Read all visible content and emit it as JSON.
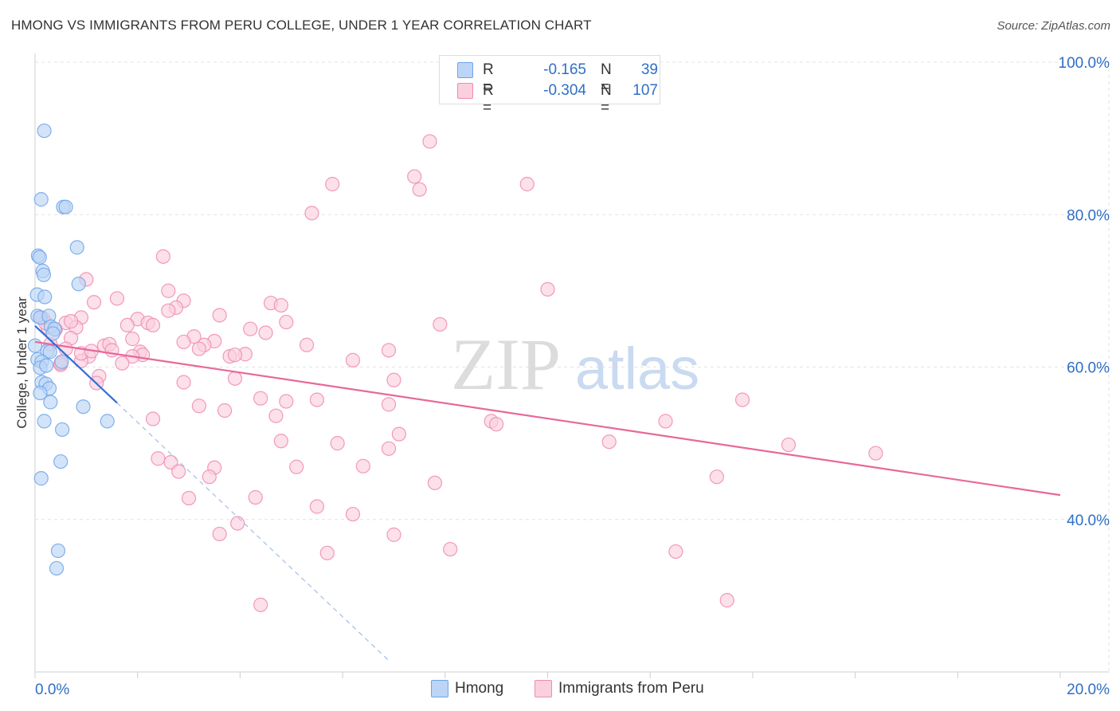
{
  "header": {
    "title": "HMONG VS IMMIGRANTS FROM PERU COLLEGE, UNDER 1 YEAR CORRELATION CHART",
    "source": "Source: ZipAtlas.com"
  },
  "watermark": {
    "zip": "ZIP",
    "atlas": "atlas"
  },
  "legend": {
    "rows": [
      {
        "label": "R =",
        "r_value": "-0.165",
        "n_label": "N =",
        "n_value": "39",
        "color": "#6fa3ea",
        "fill": "#bcd5f6"
      },
      {
        "label": "R =",
        "r_value": "-0.304",
        "n_label": "N =",
        "n_value": "107",
        "color": "#f08aae",
        "fill": "#fad0de"
      }
    ]
  },
  "bottom_legend": {
    "items": [
      {
        "label": "Hmong",
        "color": "#6fa3ea",
        "fill": "#bcd5f6"
      },
      {
        "label": "Immigrants from Peru",
        "color": "#f08aae",
        "fill": "#fad0de"
      }
    ]
  },
  "chart_data": {
    "type": "scatter",
    "title": "HMONG VS IMMIGRANTS FROM PERU COLLEGE, UNDER 1 YEAR CORRELATION CHART",
    "xlabel": "",
    "ylabel": "College, Under 1 year",
    "xlim": [
      0,
      20
    ],
    "ylim": [
      20,
      100
    ],
    "x_ticks": [
      "0.0%",
      "20.0%"
    ],
    "y_ticks": [
      {
        "value": 100,
        "label": "100.0%"
      },
      {
        "value": 80,
        "label": "80.0%"
      },
      {
        "value": 60,
        "label": "60.0%"
      },
      {
        "value": 40,
        "label": "40.0%"
      }
    ],
    "grid": true,
    "series": [
      {
        "name": "Hmong",
        "color": "#6fa3ea",
        "fill": "#bcd5f6",
        "trend_solid": {
          "x": [
            0.0,
            1.6
          ],
          "y": [
            65.4,
            55.3
          ]
        },
        "trend_dashed": {
          "x": [
            1.6,
            6.9
          ],
          "y": [
            55.3,
            21.5
          ]
        },
        "points": [
          [
            0.18,
            91.0
          ],
          [
            0.12,
            82.0
          ],
          [
            0.55,
            81.0
          ],
          [
            0.6,
            81.0
          ],
          [
            0.82,
            75.7
          ],
          [
            0.06,
            74.6
          ],
          [
            0.09,
            74.4
          ],
          [
            0.15,
            72.6
          ],
          [
            0.17,
            72.1
          ],
          [
            0.85,
            70.9
          ],
          [
            0.04,
            69.5
          ],
          [
            0.19,
            69.2
          ],
          [
            0.05,
            66.7
          ],
          [
            0.1,
            66.5
          ],
          [
            0.27,
            66.7
          ],
          [
            0.31,
            65.3
          ],
          [
            0.38,
            65.0
          ],
          [
            0.24,
            62.1
          ],
          [
            0.29,
            62.0
          ],
          [
            0.05,
            61.0
          ],
          [
            0.13,
            60.7
          ],
          [
            0.52,
            60.7
          ],
          [
            0.1,
            59.9
          ],
          [
            0.13,
            58.0
          ],
          [
            0.21,
            57.8
          ],
          [
            0.28,
            57.2
          ],
          [
            0.1,
            56.6
          ],
          [
            0.3,
            55.4
          ],
          [
            0.94,
            54.8
          ],
          [
            0.18,
            52.9
          ],
          [
            1.41,
            52.9
          ],
          [
            0.53,
            51.8
          ],
          [
            0.5,
            47.6
          ],
          [
            0.12,
            45.4
          ],
          [
            0.45,
            35.9
          ],
          [
            0.42,
            33.6
          ],
          [
            0.0,
            62.8
          ],
          [
            0.35,
            64.4
          ],
          [
            0.22,
            60.2
          ]
        ]
      },
      {
        "name": "Immigrants from Peru",
        "color": "#f08aae",
        "fill": "#fad0de",
        "trend_solid": {
          "x": [
            0.0,
            20.0
          ],
          "y": [
            63.3,
            43.2
          ]
        },
        "points": [
          [
            7.7,
            89.6
          ],
          [
            7.4,
            85.0
          ],
          [
            7.5,
            83.3
          ],
          [
            5.8,
            84.0
          ],
          [
            9.6,
            84.0
          ],
          [
            5.4,
            80.2
          ],
          [
            2.5,
            74.5
          ],
          [
            1.0,
            71.5
          ],
          [
            10.0,
            70.2
          ],
          [
            2.6,
            70.0
          ],
          [
            1.6,
            69.0
          ],
          [
            1.15,
            68.5
          ],
          [
            2.9,
            68.7
          ],
          [
            2.75,
            67.8
          ],
          [
            4.6,
            68.4
          ],
          [
            4.8,
            68.1
          ],
          [
            2.6,
            67.4
          ],
          [
            3.6,
            66.8
          ],
          [
            0.9,
            66.5
          ],
          [
            2.0,
            66.3
          ],
          [
            2.2,
            65.8
          ],
          [
            0.6,
            65.8
          ],
          [
            1.8,
            65.5
          ],
          [
            2.3,
            65.5
          ],
          [
            4.9,
            65.9
          ],
          [
            7.9,
            65.6
          ],
          [
            4.2,
            65.0
          ],
          [
            0.8,
            65.2
          ],
          [
            4.5,
            64.5
          ],
          [
            3.1,
            64.0
          ],
          [
            2.9,
            63.3
          ],
          [
            3.5,
            63.4
          ],
          [
            0.7,
            63.8
          ],
          [
            1.9,
            63.7
          ],
          [
            1.35,
            62.8
          ],
          [
            1.45,
            63.0
          ],
          [
            3.3,
            62.9
          ],
          [
            1.5,
            62.2
          ],
          [
            5.3,
            62.9
          ],
          [
            6.9,
            62.2
          ],
          [
            3.2,
            62.4
          ],
          [
            2.05,
            62.0
          ],
          [
            2.1,
            61.6
          ],
          [
            4.1,
            61.7
          ],
          [
            1.9,
            61.4
          ],
          [
            1.05,
            61.4
          ],
          [
            3.8,
            61.4
          ],
          [
            3.9,
            61.6
          ],
          [
            6.2,
            60.9
          ],
          [
            1.7,
            60.5
          ],
          [
            0.9,
            60.8
          ],
          [
            0.5,
            60.3
          ],
          [
            7.0,
            58.3
          ],
          [
            3.9,
            58.5
          ],
          [
            1.25,
            58.8
          ],
          [
            2.9,
            58.0
          ],
          [
            0.5,
            60.5
          ],
          [
            1.2,
            57.9
          ],
          [
            4.4,
            55.9
          ],
          [
            4.9,
            55.5
          ],
          [
            5.5,
            55.7
          ],
          [
            13.8,
            55.7
          ],
          [
            3.2,
            54.9
          ],
          [
            6.9,
            55.1
          ],
          [
            3.7,
            54.3
          ],
          [
            4.7,
            53.6
          ],
          [
            2.3,
            53.2
          ],
          [
            8.9,
            52.9
          ],
          [
            9.0,
            52.5
          ],
          [
            12.3,
            52.9
          ],
          [
            7.1,
            51.2
          ],
          [
            4.8,
            50.3
          ],
          [
            11.2,
            50.2
          ],
          [
            5.9,
            50.0
          ],
          [
            14.7,
            49.8
          ],
          [
            6.9,
            49.3
          ],
          [
            16.4,
            48.7
          ],
          [
            2.4,
            48.0
          ],
          [
            2.65,
            47.5
          ],
          [
            3.5,
            46.8
          ],
          [
            5.1,
            46.9
          ],
          [
            6.4,
            47.0
          ],
          [
            2.8,
            46.3
          ],
          [
            3.4,
            45.6
          ],
          [
            13.3,
            45.6
          ],
          [
            7.8,
            44.8
          ],
          [
            3.0,
            42.8
          ],
          [
            4.3,
            42.9
          ],
          [
            5.5,
            41.7
          ],
          [
            6.2,
            40.7
          ],
          [
            3.95,
            39.5
          ],
          [
            3.6,
            38.1
          ],
          [
            7.0,
            38.0
          ],
          [
            8.1,
            36.1
          ],
          [
            12.5,
            35.8
          ],
          [
            5.7,
            35.6
          ],
          [
            13.5,
            29.4
          ],
          [
            4.4,
            28.8
          ],
          [
            0.9,
            61.8
          ],
          [
            0.25,
            65.2
          ],
          [
            0.4,
            64.9
          ],
          [
            0.15,
            66.4
          ],
          [
            0.3,
            63.0
          ],
          [
            0.6,
            62.4
          ],
          [
            1.1,
            62.1
          ],
          [
            0.2,
            65.8
          ],
          [
            0.7,
            66.0
          ]
        ]
      }
    ]
  }
}
